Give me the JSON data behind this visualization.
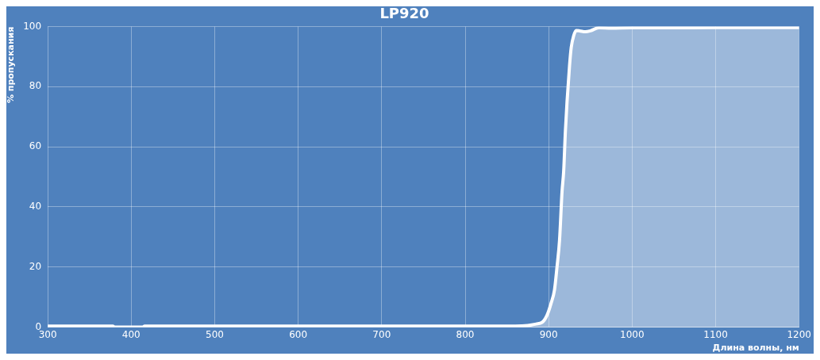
{
  "chart_data": {
    "type": "area",
    "title": "LP920",
    "xlabel": "Длина волны, нм",
    "ylabel": "% пропускания",
    "x": [
      300,
      340,
      378,
      380,
      400,
      414,
      416,
      500,
      600,
      700,
      800,
      860,
      875,
      885,
      892,
      898,
      903,
      907,
      910,
      913,
      916,
      918,
      920,
      922,
      925,
      927,
      930,
      933,
      937,
      944,
      950,
      960,
      975,
      1000,
      1050,
      1100,
      1150,
      1200
    ],
    "series": [
      {
        "color": "#ffffff",
        "values": [
          0.3,
          0.3,
          0.3,
          0,
          0,
          0,
          0.3,
          0.3,
          0.3,
          0.3,
          0.3,
          0.3,
          0.5,
          1,
          1.5,
          3.9,
          8,
          12.4,
          20,
          28.8,
          45,
          52,
          65,
          75,
          87,
          93,
          97,
          98.7,
          98.6,
          98.3,
          98.6,
          99.6,
          99.5,
          99.6,
          99.6,
          99.7,
          99.7,
          99.7
        ]
      }
    ],
    "xlim": [
      300,
      1200
    ],
    "xticks": [
      300,
      400,
      500,
      600,
      700,
      800,
      900,
      1000,
      1100,
      1200
    ],
    "ylim": [
      0,
      100
    ],
    "yticks": [
      0,
      20,
      40,
      60,
      80,
      100
    ],
    "grid": true,
    "legend": false
  }
}
